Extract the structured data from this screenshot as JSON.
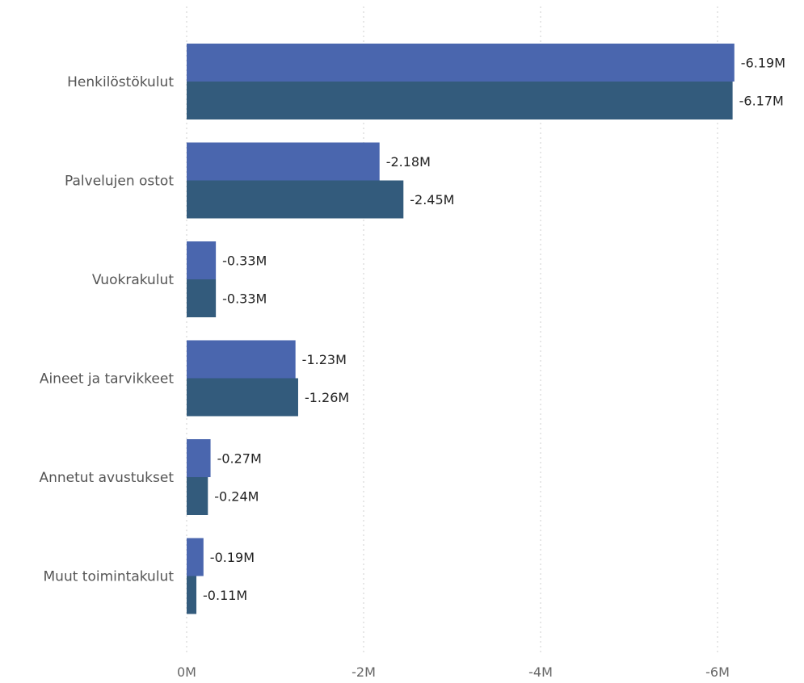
{
  "chart_data": {
    "type": "bar",
    "orientation": "horizontal",
    "categories": [
      "Henkilöstökulut",
      "Palvelujen ostot",
      "Vuokrakulut",
      "Aineet ja tarvikkeet",
      "Annetut avustukset",
      "Muut toimintakulut"
    ],
    "series": [
      {
        "values": [
          -6.19,
          -2.18,
          -0.33,
          -1.23,
          -0.27,
          -0.19
        ],
        "labels": [
          "-6.19M",
          "-2.18M",
          "-0.33M",
          "-1.23M",
          "-0.27M",
          "-0.19M"
        ],
        "color": "#4a66ae"
      },
      {
        "values": [
          -6.17,
          -2.45,
          -0.33,
          -1.26,
          -0.24,
          -0.11
        ],
        "labels": [
          "-6.17M",
          "-2.45M",
          "-0.33M",
          "-1.26M",
          "-0.24M",
          "-0.11M"
        ],
        "color": "#335b7c"
      }
    ],
    "x_ticks": [
      {
        "value": 0,
        "label": "0M"
      },
      {
        "value": -2,
        "label": "-2M"
      },
      {
        "value": -4,
        "label": "-4M"
      },
      {
        "value": -6,
        "label": "-6M"
      }
    ],
    "xlim": [
      0,
      -6.5
    ],
    "axis_reversed": true,
    "grid": true,
    "legend": "none"
  }
}
